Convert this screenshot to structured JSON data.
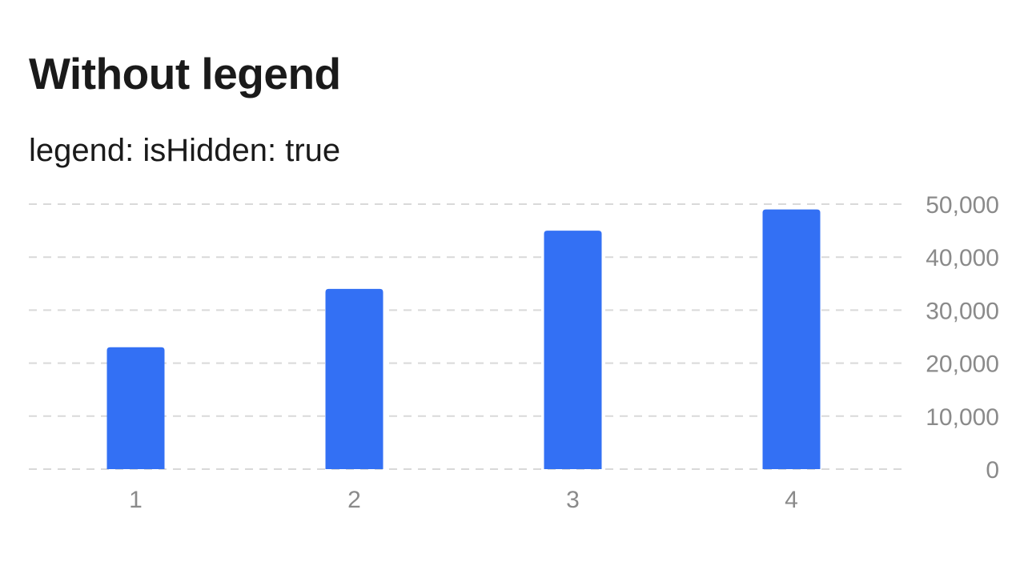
{
  "header": {
    "title": "Without legend",
    "subtitle": "legend: isHidden: true"
  },
  "chart_data": {
    "type": "bar",
    "categories": [
      "1",
      "2",
      "3",
      "4"
    ],
    "values": [
      23000,
      34000,
      45000,
      49000
    ],
    "ylim": [
      0,
      50000
    ],
    "yticks": [
      0,
      10000,
      20000,
      30000,
      40000,
      50000
    ],
    "ytick_labels": [
      "0",
      "10,000",
      "20,000",
      "30,000",
      "40,000",
      "50,000"
    ],
    "y_axis_side": "right",
    "grid": true,
    "grid_style": "dashed",
    "legend": "hidden",
    "colors": {
      "bar": "#3370f4",
      "grid": "#d9d9d9",
      "tick_text": "#8a8a8a"
    }
  }
}
